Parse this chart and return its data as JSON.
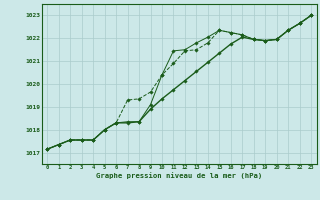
{
  "title": "Graphe pression niveau de la mer (hPa)",
  "xlabel_ticks": [
    0,
    1,
    2,
    3,
    4,
    5,
    6,
    7,
    8,
    9,
    10,
    11,
    12,
    13,
    14,
    15,
    16,
    17,
    18,
    19,
    20,
    21,
    22,
    23
  ],
  "ylim": [
    1016.5,
    1023.5
  ],
  "xlim": [
    -0.5,
    23.5
  ],
  "yticks": [
    1017,
    1018,
    1019,
    1020,
    1021,
    1022,
    1023
  ],
  "bg_color": "#cce8e8",
  "grid_color": "#aacccc",
  "line_color": "#1a5c1a",
  "line1_y": [
    1017.15,
    1017.35,
    1017.55,
    1017.55,
    1017.55,
    1018.0,
    1018.3,
    1018.35,
    1018.35,
    1019.1,
    1020.4,
    1021.45,
    1021.5,
    1021.8,
    1022.05,
    1022.35,
    1022.25,
    1022.15,
    1021.95,
    1021.9,
    1021.95,
    1022.35,
    1022.65,
    1023.0
  ],
  "line2_y": [
    1017.15,
    1017.35,
    1017.55,
    1017.55,
    1017.55,
    1018.0,
    1018.3,
    1018.3,
    1018.35,
    1018.9,
    1019.35,
    1019.75,
    1020.15,
    1020.55,
    1020.95,
    1021.35,
    1021.75,
    1022.05,
    1021.95,
    1021.9,
    1021.95,
    1022.35,
    1022.65,
    1023.0
  ],
  "line3_y": [
    1017.15,
    1017.35,
    1017.55,
    1017.55,
    1017.55,
    1018.0,
    1018.3,
    1019.3,
    1019.35,
    1019.65,
    1020.4,
    1020.9,
    1021.45,
    1021.5,
    1021.8,
    1022.35,
    1022.25,
    1022.15,
    1021.95,
    1021.9,
    1021.95,
    1022.35,
    1022.65,
    1023.0
  ]
}
